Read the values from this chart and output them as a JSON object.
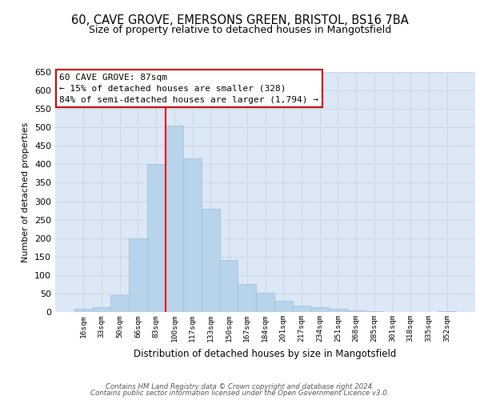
{
  "title_line1": "60, CAVE GROVE, EMERSONS GREEN, BRISTOL, BS16 7BA",
  "title_line2": "Size of property relative to detached houses in Mangotsfield",
  "xlabel": "Distribution of detached houses by size in Mangotsfield",
  "ylabel": "Number of detached properties",
  "bar_labels": [
    "16sqm",
    "33sqm",
    "50sqm",
    "66sqm",
    "83sqm",
    "100sqm",
    "117sqm",
    "133sqm",
    "150sqm",
    "167sqm",
    "184sqm",
    "201sqm",
    "217sqm",
    "234sqm",
    "251sqm",
    "268sqm",
    "285sqm",
    "301sqm",
    "318sqm",
    "335sqm",
    "352sqm"
  ],
  "bar_values": [
    8,
    12,
    45,
    200,
    400,
    505,
    415,
    280,
    140,
    75,
    52,
    30,
    18,
    12,
    8,
    5,
    2,
    1,
    0,
    0,
    2
  ],
  "bar_color": "#b8d4ea",
  "bar_edge_color": "#9dbdd8",
  "vline_color": "red",
  "vline_x_index": 4,
  "ylim": [
    0,
    650
  ],
  "yticks": [
    0,
    50,
    100,
    150,
    200,
    250,
    300,
    350,
    400,
    450,
    500,
    550,
    600,
    650
  ],
  "annotation_text": "60 CAVE GROVE: 87sqm\n← 15% of detached houses are smaller (328)\n84% of semi-detached houses are larger (1,794) →",
  "annotation_box_color": "white",
  "annotation_box_edge": "#cc0000",
  "footnote_line1": "Contains HM Land Registry data © Crown copyright and database right 2024.",
  "footnote_line2": "Contains public sector information licensed under the Open Government Licence v3.0.",
  "bg_color": "#dce8f5",
  "grid_color": "#c8d8e8",
  "fig_bg": "white"
}
